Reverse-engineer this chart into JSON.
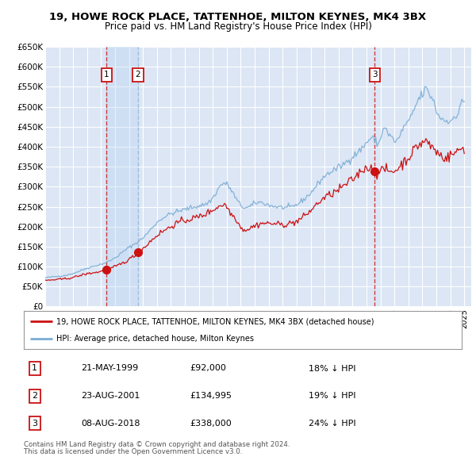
{
  "title": "19, HOWE ROCK PLACE, TATTENHOE, MILTON KEYNES, MK4 3BX",
  "subtitle": "Price paid vs. HM Land Registry's House Price Index (HPI)",
  "background_color": "#ffffff",
  "plot_bg_color": "#dce6f5",
  "grid_color": "#ffffff",
  "hpi_color": "#7aadd4",
  "price_color": "#cc1111",
  "shading_color": "#d8e8f8",
  "ylim": [
    0,
    650000
  ],
  "yticks": [
    0,
    50000,
    100000,
    150000,
    200000,
    250000,
    300000,
    350000,
    400000,
    450000,
    500000,
    550000,
    600000,
    650000
  ],
  "ytick_labels": [
    "£0",
    "£50K",
    "£100K",
    "£150K",
    "£200K",
    "£250K",
    "£300K",
    "£350K",
    "£400K",
    "£450K",
    "£500K",
    "£550K",
    "£600K",
    "£650K"
  ],
  "xmin": 1995.0,
  "xmax": 2025.5,
  "sale_dates": [
    1999.386,
    2001.644,
    2018.597
  ],
  "sale_prices": [
    92000,
    134995,
    338000
  ],
  "sale_labels": [
    "1",
    "2",
    "3"
  ],
  "shade_x1": 1999.386,
  "shade_x2": 2001.644,
  "transaction_info": [
    {
      "label": "1",
      "date": "21-MAY-1999",
      "price": "£92,000",
      "hpi": "18% ↓ HPI"
    },
    {
      "label": "2",
      "date": "23-AUG-2001",
      "price": "£134,995",
      "hpi": "19% ↓ HPI"
    },
    {
      "label": "3",
      "date": "08-AUG-2018",
      "price": "£338,000",
      "hpi": "24% ↓ HPI"
    }
  ],
  "legend_line1": "19, HOWE ROCK PLACE, TATTENHOE, MILTON KEYNES, MK4 3BX (detached house)",
  "legend_line2": "HPI: Average price, detached house, Milton Keynes",
  "footer1": "Contains HM Land Registry data © Crown copyright and database right 2024.",
  "footer2": "This data is licensed under the Open Government Licence v3.0."
}
